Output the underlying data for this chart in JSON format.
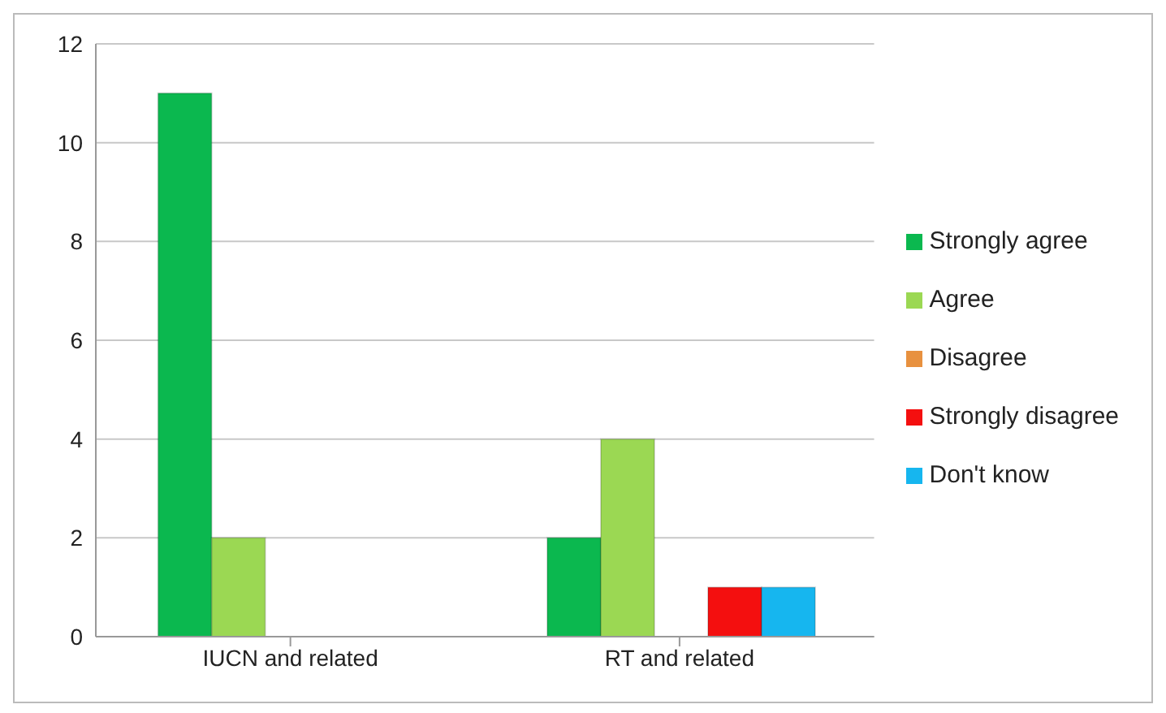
{
  "chart_data": {
    "type": "bar",
    "categories": [
      "IUCN and related",
      "RT and related"
    ],
    "series": [
      {
        "name": "Strongly agree",
        "color": "#0bb84f",
        "values": [
          11,
          2
        ]
      },
      {
        "name": "Agree",
        "color": "#9bd853",
        "values": [
          2,
          4
        ]
      },
      {
        "name": "Disagree",
        "color": "#e8913f",
        "values": [
          0,
          0
        ]
      },
      {
        "name": "Strongly disagree",
        "color": "#f40f0f",
        "values": [
          0,
          1
        ]
      },
      {
        "name": "Don't know",
        "color": "#16b6ef",
        "values": [
          0,
          1
        ]
      }
    ],
    "ylim": [
      0,
      12
    ],
    "yticks": [
      0,
      2,
      4,
      6,
      8,
      10,
      12
    ],
    "grid": "y",
    "legend": "right"
  }
}
